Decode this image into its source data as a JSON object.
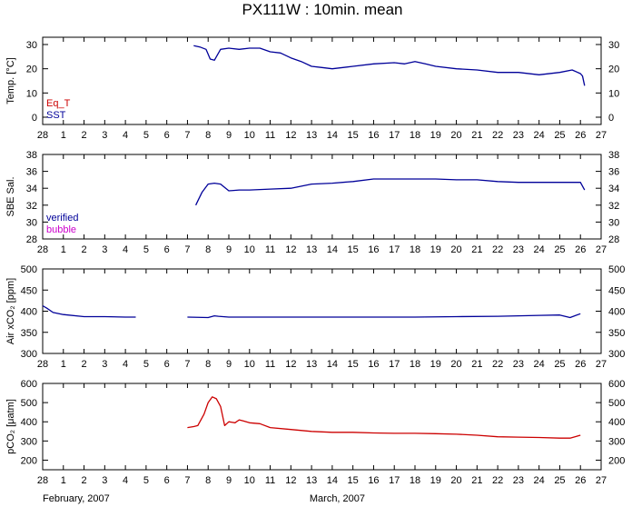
{
  "chart_data": {
    "title": "PX111W : 10min. mean",
    "type": "line",
    "x_ticks": [
      "28",
      "1",
      "2",
      "3",
      "4",
      "5",
      "6",
      "7",
      "8",
      "9",
      "10",
      "11",
      "12",
      "13",
      "14",
      "15",
      "16",
      "17",
      "18",
      "19",
      "20",
      "21",
      "22",
      "23",
      "24",
      "25",
      "26",
      "27"
    ],
    "xlim": [
      0,
      27
    ],
    "month_labels": [
      {
        "text": "February, 2007",
        "at": 0
      },
      {
        "text": "March, 2007",
        "at": 14
      }
    ],
    "panels": [
      {
        "id": "temp",
        "ylabel": "Temp. [°C]",
        "ylim": [
          -3,
          33
        ],
        "yticks": [
          0,
          10,
          20,
          30
        ],
        "legend": [
          {
            "name": "Eq_T",
            "color": "#cc0000"
          },
          {
            "name": "SST",
            "color": "#000099"
          }
        ],
        "series": [
          {
            "name": "SST",
            "color": "#000099",
            "x": [
              7.3,
              7.6,
              7.9,
              8.1,
              8.3,
              8.6,
              9.0,
              9.5,
              10.0,
              10.5,
              11.0,
              11.5,
              12.0,
              12.5,
              13.0,
              13.5,
              14.0,
              15.0,
              16.0,
              17.0,
              17.5,
              18.0,
              18.5,
              19.0,
              20.0,
              21.0,
              22.0,
              23.0,
              24.0,
              25.0,
              25.6,
              26.0,
              26.1,
              26.2
            ],
            "values": [
              29.5,
              29,
              28,
              24,
              23.5,
              28,
              28.5,
              28,
              28.5,
              28.5,
              27,
              26.5,
              24.5,
              23,
              21,
              20.5,
              20,
              21,
              22,
              22.5,
              22,
              23,
              22,
              21,
              20,
              19.5,
              18.5,
              18.5,
              17.5,
              18.5,
              19.5,
              18,
              17,
              13
            ]
          }
        ]
      },
      {
        "id": "sal",
        "ylabel": "SBE Sal.",
        "ylim": [
          28,
          38
        ],
        "yticks": [
          28,
          30,
          32,
          34,
          36,
          38
        ],
        "legend": [
          {
            "name": "verified",
            "color": "#000099"
          },
          {
            "name": "bubble",
            "color": "#cc00cc"
          }
        ],
        "series": [
          {
            "name": "verified",
            "color": "#000099",
            "x": [
              7.4,
              7.5,
              7.7,
              8.0,
              8.3,
              8.6,
              9.0,
              9.5,
              10.0,
              11.0,
              12.0,
              13.0,
              14.0,
              15.0,
              16.0,
              17.0,
              18.0,
              19.0,
              20.0,
              21.0,
              22.0,
              23.0,
              24.0,
              25.0,
              26.0,
              26.2
            ],
            "values": [
              32,
              32.5,
              33.5,
              34.5,
              34.6,
              34.5,
              33.7,
              33.8,
              33.8,
              33.9,
              34.0,
              34.5,
              34.6,
              34.8,
              35.1,
              35.1,
              35.1,
              35.1,
              35.0,
              35.0,
              34.8,
              34.7,
              34.7,
              34.7,
              34.7,
              33.8
            ]
          }
        ]
      },
      {
        "id": "air",
        "ylabel": "Air xCO₂ [ppm]",
        "ylim": [
          300,
          500
        ],
        "yticks": [
          300,
          350,
          400,
          450,
          500
        ],
        "series": [
          {
            "name": "air_a",
            "color": "#000099",
            "x": [
              0,
              0.2,
              0.5,
              1.0,
              2.0,
              3.0,
              4.0,
              4.5
            ],
            "values": [
              413,
              407,
              397,
              392,
              387,
              387,
              386,
              386
            ]
          },
          {
            "name": "air_b",
            "color": "#000099",
            "x": [
              7.0,
              8.0,
              8.3,
              8.5,
              9.0,
              10.0,
              12.0,
              14.0,
              16.0,
              18.0,
              20.0,
              22.0,
              24.0,
              25.0,
              25.5,
              26.0
            ],
            "values": [
              386,
              385,
              389,
              388,
              386,
              386,
              386,
              386,
              386,
              386,
              387,
              388,
              390,
              391,
              385,
              394
            ]
          }
        ]
      },
      {
        "id": "pco2",
        "ylabel": "pCO₂ [μatm]",
        "ylim": [
          150,
          600
        ],
        "yticks": [
          200,
          300,
          400,
          500,
          600
        ],
        "series": [
          {
            "name": "pCO2",
            "color": "#cc0000",
            "x": [
              7.0,
              7.3,
              7.5,
              7.8,
              8.0,
              8.2,
              8.4,
              8.6,
              8.8,
              9.0,
              9.3,
              9.5,
              9.7,
              10.0,
              10.5,
              11.0,
              12.0,
              13.0,
              14.0,
              15.0,
              16.0,
              17.0,
              18.0,
              19.0,
              20.0,
              21.0,
              22.0,
              23.0,
              24.0,
              25.0,
              25.5,
              26.0
            ],
            "values": [
              370,
              375,
              380,
              440,
              500,
              530,
              520,
              480,
              380,
              400,
              395,
              410,
              405,
              395,
              390,
              370,
              360,
              350,
              345,
              345,
              342,
              340,
              340,
              338,
              335,
              330,
              322,
              320,
              318,
              315,
              315,
              330
            ]
          }
        ]
      }
    ]
  }
}
